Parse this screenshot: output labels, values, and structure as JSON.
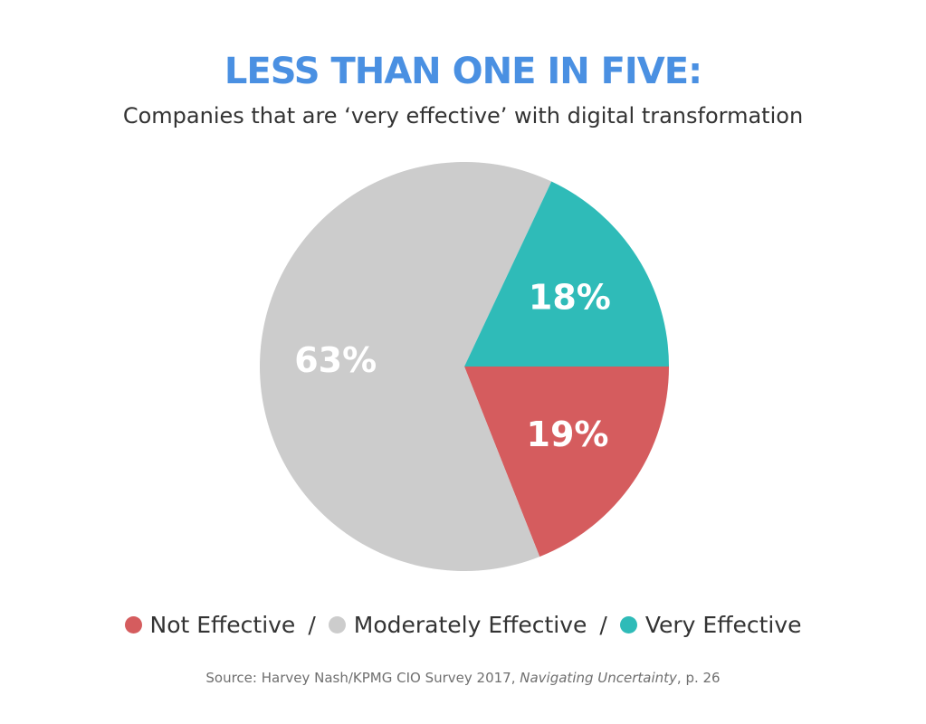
{
  "title": "LESS THAN ONE IN FIVE:",
  "subtitle": "Companies that are ‘very effective’ with digital transformation",
  "chart_data": {
    "type": "pie",
    "title": "LESS THAN ONE IN FIVE:",
    "subtitle": "Companies that are ‘very effective’ with digital transformation",
    "slices": [
      {
        "name": "Not Effective",
        "value": 19,
        "label": "19%",
        "color": "#d55c5e"
      },
      {
        "name": "Moderately Effective",
        "value": 63,
        "label": "63%",
        "color": "#cccccc"
      },
      {
        "name": "Very Effective",
        "value": 18,
        "label": "18%",
        "color": "#2fbbb8"
      }
    ],
    "legend_position": "bottom"
  },
  "legend": {
    "separator": "/",
    "items": [
      {
        "label": "Not Effective",
        "color": "#d55c5e"
      },
      {
        "label": "Moderately Effective",
        "color": "#cccccc"
      },
      {
        "label": "Very Effective",
        "color": "#2fbbb8"
      }
    ]
  },
  "source": {
    "prefix": "Source: Harvey Nash/KPMG CIO Survey 2017, ",
    "italic": "Navigating Uncertainty",
    "suffix": ", p. 26"
  }
}
